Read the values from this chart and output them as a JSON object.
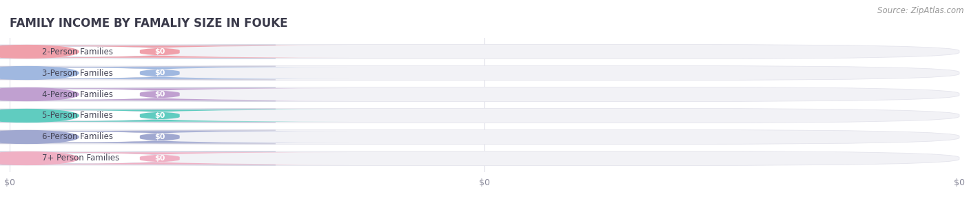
{
  "title": "FAMILY INCOME BY FAMALIY SIZE IN FOUKE",
  "source": "Source: ZipAtlas.com",
  "categories": [
    "2-Person Families",
    "3-Person Families",
    "4-Person Families",
    "5-Person Families",
    "6-Person Families",
    "7+ Person Families"
  ],
  "values": [
    0,
    0,
    0,
    0,
    0,
    0
  ],
  "bar_colors": [
    "#f0a0aa",
    "#a0b8e0",
    "#c0a0d0",
    "#60ccc0",
    "#a0a8d0",
    "#f0b0c4"
  ],
  "label_bg_colors": [
    "#fce8ea",
    "#dce8f8",
    "#ead8f0",
    "#c8eeec",
    "#dcddf0",
    "#fce0ea"
  ],
  "icon_colors": [
    "#f0a0aa",
    "#a0b8e0",
    "#c0a0d0",
    "#60ccc0",
    "#a0a8d0",
    "#f0b0c4"
  ],
  "bar_track_color": "#f2f2f6",
  "bar_track_border_color": "#e4e4ec",
  "xtick_labels": [
    "$0",
    "$0",
    "$0"
  ],
  "xtick_positions": [
    0.0,
    0.5,
    1.0
  ],
  "background_color": "#ffffff",
  "title_fontsize": 12,
  "label_fontsize": 8.5,
  "source_fontsize": 8.5,
  "title_color": "#3a3a4a",
  "label_text_color": "#444455"
}
